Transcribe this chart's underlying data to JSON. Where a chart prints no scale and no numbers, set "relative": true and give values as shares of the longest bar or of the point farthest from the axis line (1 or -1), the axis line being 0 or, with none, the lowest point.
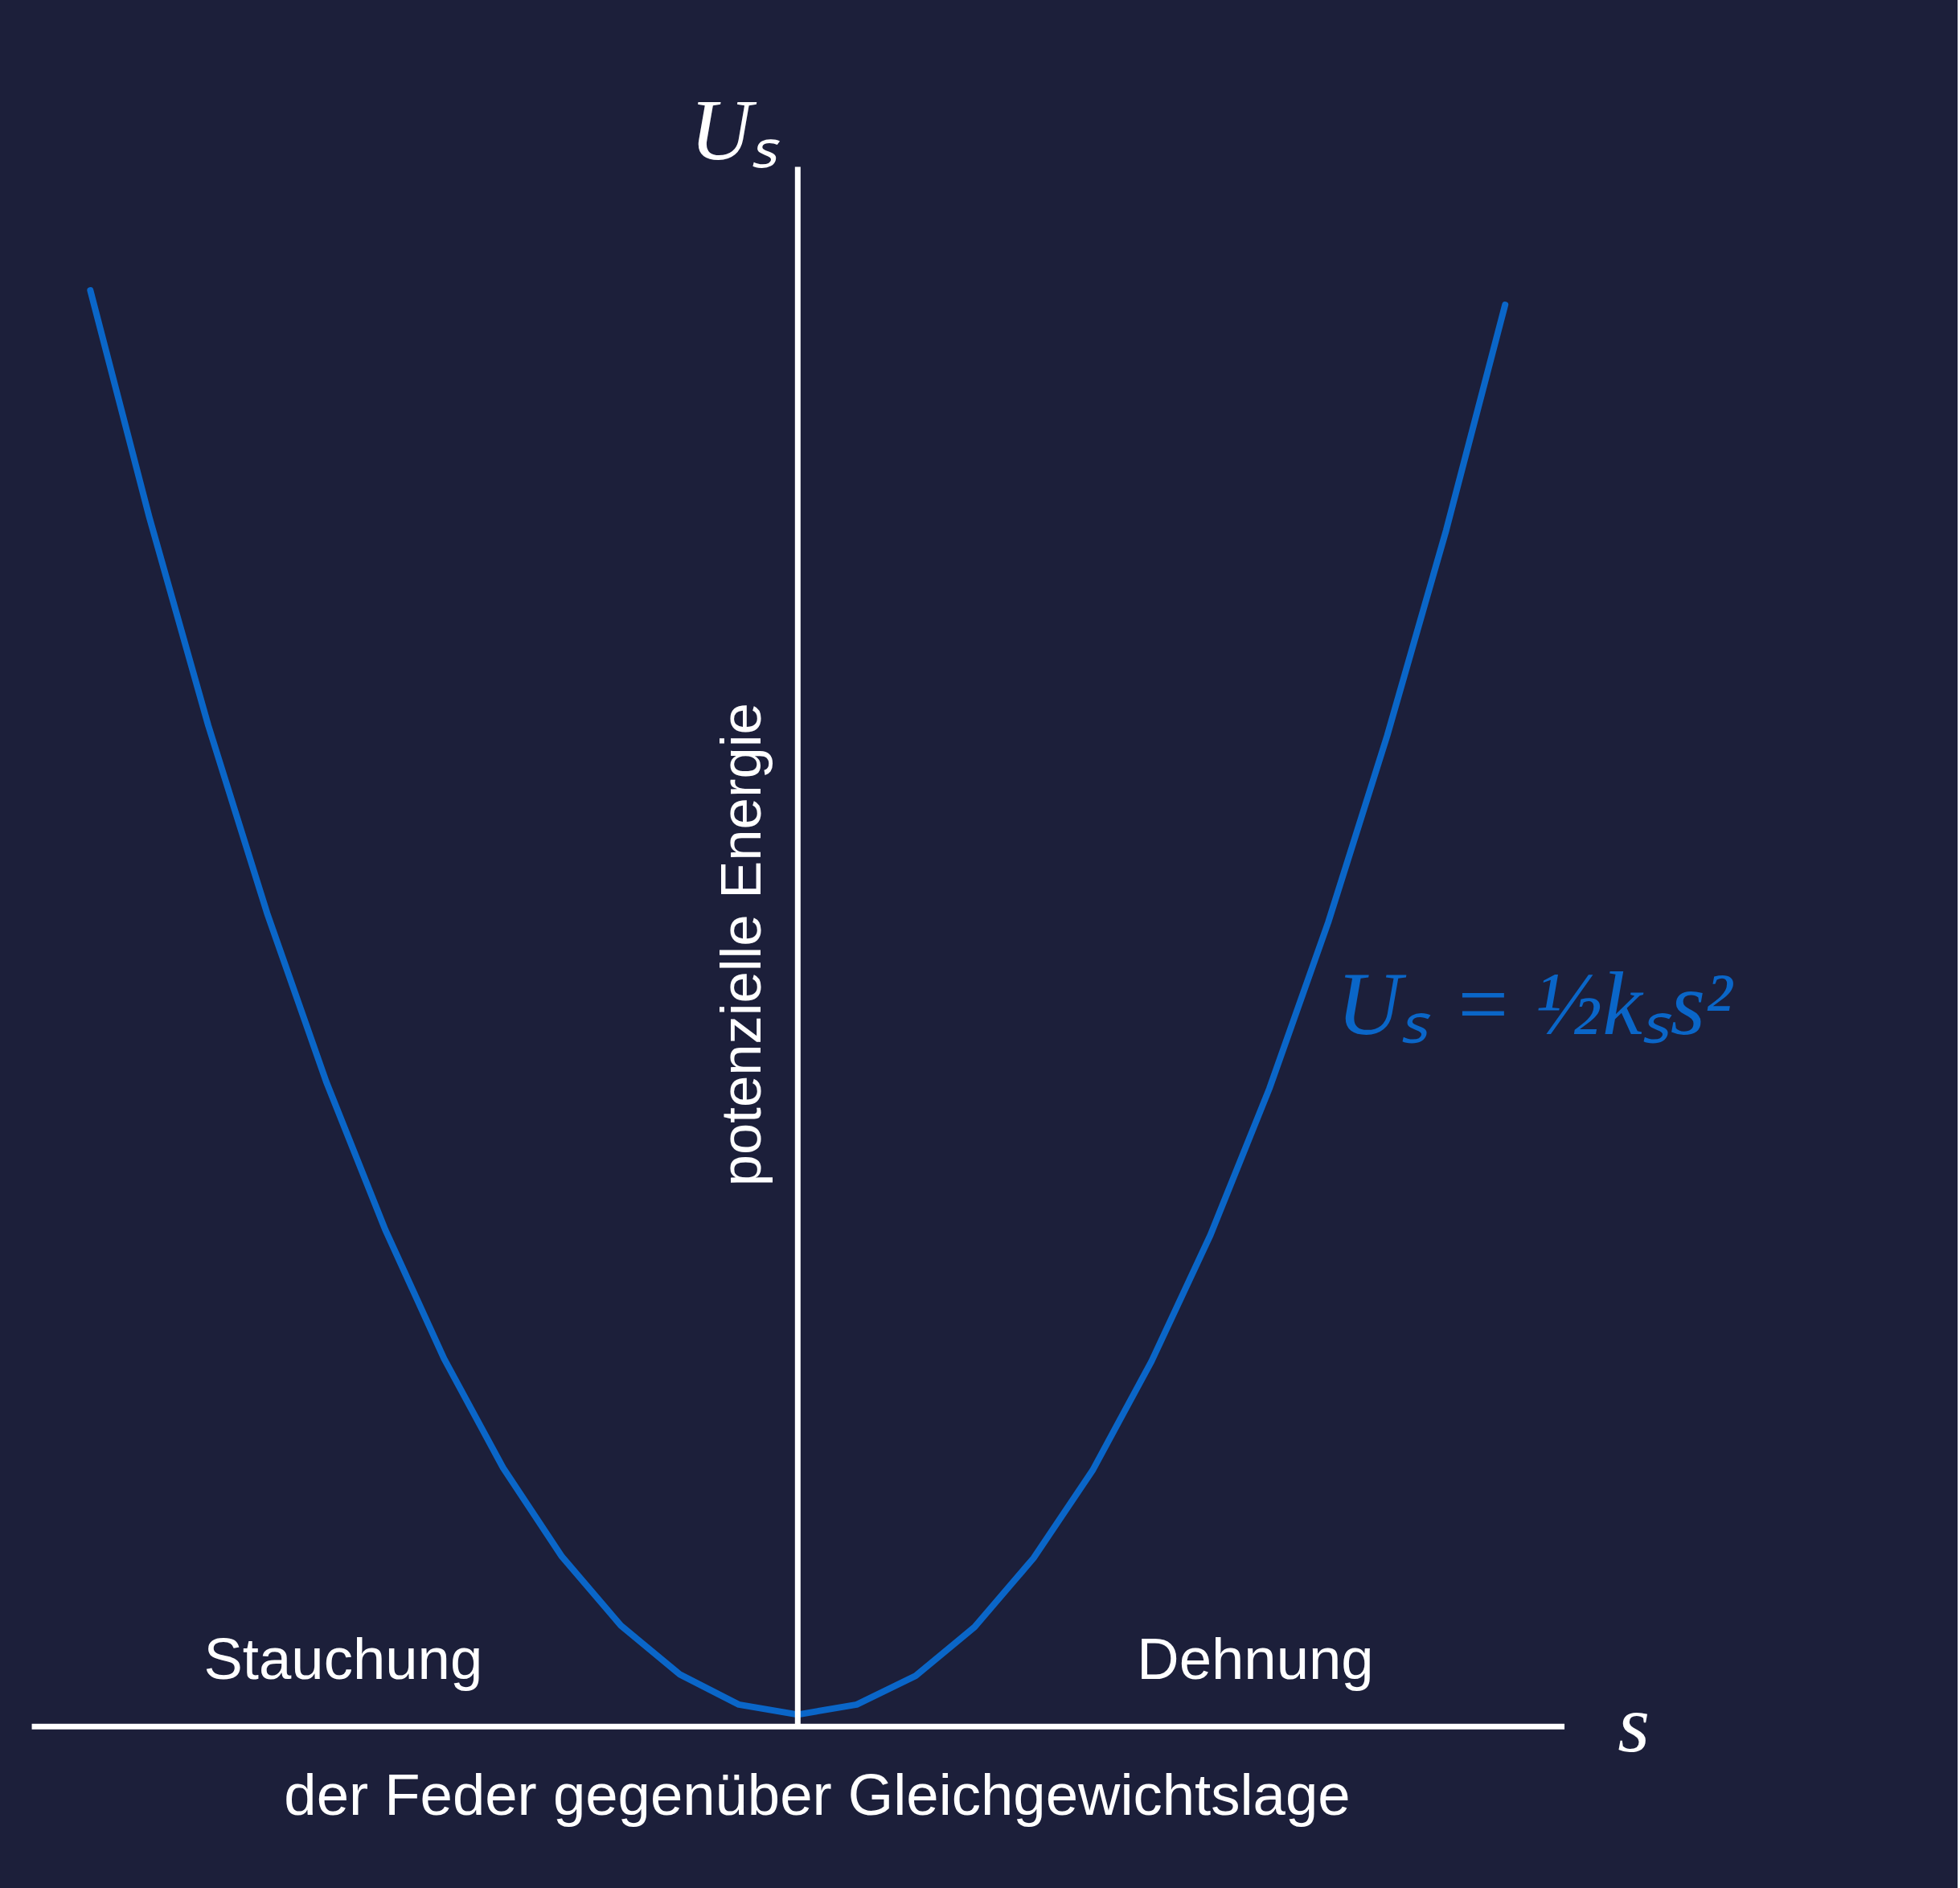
{
  "chart_data": {
    "type": "line",
    "relative": true,
    "xlabel": "s",
    "ylabel": "Uₛ",
    "categories": [
      null,
      null,
      null,
      null,
      null,
      null,
      null,
      null,
      null,
      null,
      null,
      null,
      null,
      null,
      null,
      null,
      null,
      null,
      null,
      null,
      null,
      null,
      null,
      null,
      null
    ],
    "series": [
      {
        "color": "#0a66c8",
        "values": [
          1.0,
          0.842,
          0.697,
          0.566,
          0.449,
          0.346,
          0.256,
          0.18,
          0.118,
          0.07,
          0.036,
          0.015,
          0.008,
          0.015,
          0.035,
          0.069,
          0.117,
          0.178,
          0.254,
          0.342,
          0.444,
          0.56,
          0.69,
          0.833,
          0.99
        ]
      }
    ],
    "annotations": [
      "potenzielle Energie",
      "Stauchung",
      "Dehnung",
      "der Feder gegenüber Gleichgewichtslage",
      "Uₛ = ½kₛs²"
    ],
    "grid": false,
    "line_style": "solid"
  }
}
